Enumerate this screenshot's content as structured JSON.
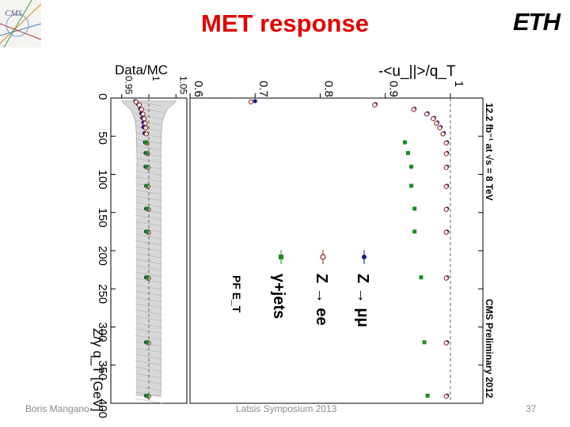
{
  "slide": {
    "title": "MET response",
    "footer_left": "Boris Mangano",
    "footer_center": "Latsis Symposium 2013",
    "page_number": "37",
    "logo_left": "CMS",
    "logo_right": "ETH"
  },
  "chart_data": [
    {
      "type": "scatter",
      "orientation": "rotated-90-clockwise",
      "title": "",
      "annotation_lumi": "12.2 fb⁻¹ at √s = 8 TeV",
      "annotation_prelim": "CMS Preliminary 2012",
      "annotation_algo": "PF E_T",
      "xlabel": "Z/γ q_T [GeV]",
      "ylabel": "-<u_||>/q_T",
      "xlim": [
        0,
        400
      ],
      "ylim": [
        0.6,
        1.05
      ],
      "x_ticks": [
        0,
        50,
        100,
        150,
        200,
        250,
        300,
        350,
        400
      ],
      "y_ticks": [
        0.6,
        0.7,
        0.8,
        0.9,
        1
      ],
      "y_tick_labels": [
        "0.6",
        "0.7",
        "0.8",
        "0.9",
        "1"
      ],
      "x_tick_labels": [
        "0",
        "50",
        "100",
        "150",
        "200",
        "250",
        "300",
        "350",
        "400"
      ],
      "legend_position": "lower-middle",
      "reference_line": 1.0,
      "series": [
        {
          "name": "Z → μμ",
          "color": "#1a1a8c",
          "marker": "filled-circle",
          "x": [
            4,
            8,
            14,
            20,
            26,
            32,
            38,
            46,
            58,
            72,
            90,
            115,
            145,
            175,
            235,
            320,
            390
          ],
          "y": [
            0.7,
            0.885,
            0.945,
            0.965,
            0.975,
            0.98,
            0.985,
            0.99,
            0.995,
            0.995,
            0.995,
            0.995,
            0.995,
            0.995,
            0.995,
            0.995,
            0.995
          ]
        },
        {
          "name": "Z → ee",
          "color": "#8b1a1a",
          "marker": "open-circle",
          "x": [
            4,
            8,
            14,
            20,
            26,
            32,
            38,
            46,
            58,
            72,
            90,
            115,
            145,
            175,
            235,
            320,
            390
          ],
          "y": [
            0.69,
            0.88,
            0.94,
            0.96,
            0.97,
            0.975,
            0.98,
            0.985,
            0.99,
            0.99,
            0.99,
            0.99,
            0.99,
            0.99,
            0.99,
            0.99,
            0.99
          ]
        },
        {
          "name": "γ+jets",
          "color": "#1a8c1a",
          "marker": "filled-square",
          "x": [
            58,
            72,
            90,
            115,
            145,
            175,
            235,
            320,
            390
          ],
          "y": [
            0.93,
            0.935,
            0.94,
            0.94,
            0.945,
            0.945,
            0.955,
            0.96,
            0.965
          ]
        }
      ]
    },
    {
      "type": "scatter",
      "orientation": "rotated-90-clockwise",
      "title": "",
      "ylabel": "Data/MC",
      "xlim": [
        0,
        400
      ],
      "ylim": [
        0.93,
        1.07
      ],
      "y_ticks": [
        0.95,
        1,
        1.05
      ],
      "y_tick_labels": [
        "0.95",
        "1",
        "1.05"
      ],
      "reference_line": 1.0,
      "band": "systematic uncertainty (hatched)",
      "band_halfwidth": [
        0.05,
        0.045,
        0.035,
        0.03,
        0.027,
        0.025,
        0.024,
        0.023,
        0.023,
        0.022,
        0.022,
        0.022,
        0.022,
        0.022,
        0.022,
        0.022,
        0.022
      ],
      "band_x": [
        4,
        8,
        14,
        20,
        26,
        32,
        38,
        46,
        58,
        72,
        90,
        115,
        145,
        175,
        235,
        320,
        390
      ],
      "series": [
        {
          "name": "Z → μμ",
          "color": "#1a1a8c",
          "marker": "filled-circle",
          "x": [
            4,
            8,
            14,
            20,
            26,
            32,
            38,
            46,
            58,
            72,
            90,
            115,
            145,
            175,
            235,
            320,
            390
          ],
          "y": [
            0.975,
            0.98,
            0.984,
            0.986,
            0.988,
            0.99,
            0.99,
            0.992,
            0.993,
            0.994,
            0.994,
            0.995,
            0.995,
            0.995,
            0.995,
            0.995,
            0.995
          ]
        },
        {
          "name": "Z → ee",
          "color": "#8b1a1a",
          "marker": "open-circle",
          "x": [
            4,
            8,
            14,
            20,
            26,
            32,
            38,
            46,
            58,
            72,
            90,
            115,
            145,
            175,
            235,
            320,
            390
          ],
          "y": [
            0.972,
            0.978,
            0.982,
            0.985,
            0.987,
            0.989,
            0.99,
            0.991,
            0.992,
            0.993,
            0.994,
            0.994,
            0.995,
            0.995,
            0.995,
            0.995,
            0.995
          ]
        },
        {
          "name": "γ+jets",
          "color": "#1a8c1a",
          "marker": "filled-square",
          "x": [
            58,
            72,
            90,
            115,
            145,
            175,
            235,
            320,
            390
          ],
          "y": [
            0.995,
            0.996,
            0.996,
            0.996,
            0.997,
            0.997,
            0.997,
            0.997,
            0.997
          ]
        }
      ]
    }
  ]
}
